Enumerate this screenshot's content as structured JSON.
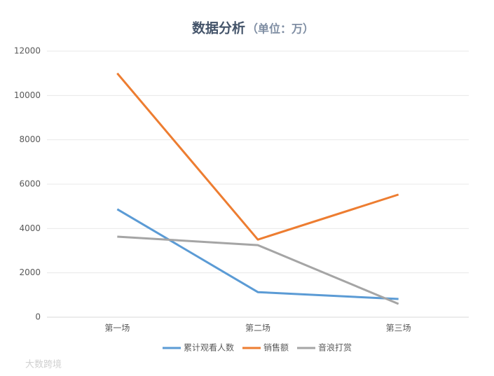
{
  "chart_data": {
    "type": "line",
    "title": "数据分析",
    "unit_note": "（单位：万）",
    "categories": [
      "第一场",
      "第二场",
      "第三场"
    ],
    "series": [
      {
        "name": "累计观看人数",
        "color": "#5b9bd5",
        "values": [
          4870,
          1130,
          820
        ]
      },
      {
        "name": "销售额",
        "color": "#ed7d31",
        "values": [
          11000,
          3500,
          5530
        ]
      },
      {
        "name": "音浪打赏",
        "color": "#a5a5a5",
        "values": [
          3630,
          3250,
          600
        ]
      }
    ],
    "ylim": [
      0,
      12000
    ],
    "yticks": [
      0,
      2000,
      4000,
      6000,
      8000,
      10000,
      12000
    ],
    "grid": true,
    "legend": "bottom",
    "watermark": "大数跨境"
  }
}
